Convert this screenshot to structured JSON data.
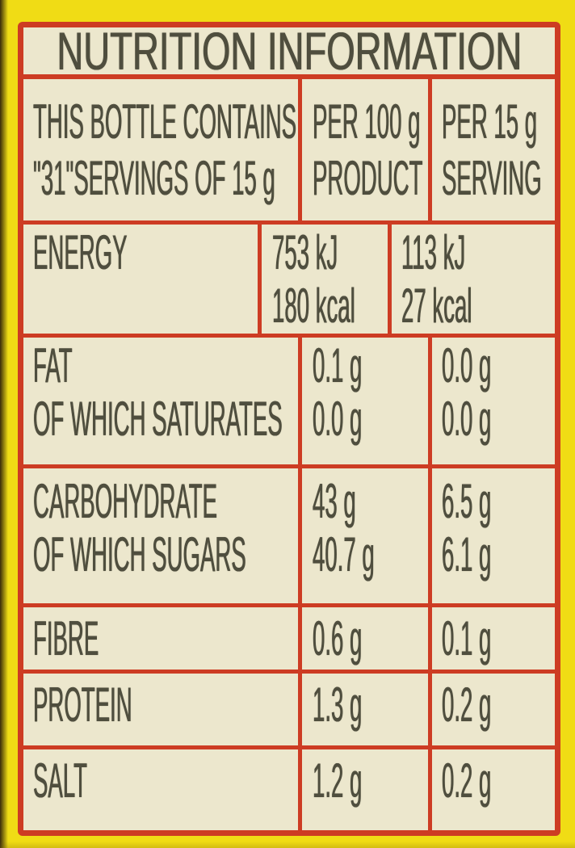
{
  "table": {
    "title": "NUTRITION INFORMATION",
    "header": {
      "description_line1": "THIS BOTTLE CONTAINS",
      "description_line2": "\"31\"SERVINGS OF 15 g",
      "per100_line1": "PER 100 g",
      "per100_line2": "PRODUCT",
      "per15_line1": "PER 15 g",
      "per15_line2": "SERVING"
    },
    "rows": [
      {
        "name_lines": [
          "ENERGY",
          ""
        ],
        "per100_lines": [
          "753 kJ",
          "180 kcal"
        ],
        "per15_lines": [
          "113 kJ",
          "27 kcal"
        ]
      },
      {
        "name_lines": [
          "FAT",
          "OF WHICH SATURATES"
        ],
        "per100_lines": [
          "0.1 g",
          "0.0 g"
        ],
        "per15_lines": [
          "0.0 g",
          "0.0 g"
        ]
      },
      {
        "name_lines": [
          "CARBOHYDRATE",
          "OF WHICH SUGARS"
        ],
        "per100_lines": [
          "43 g",
          "40.7 g"
        ],
        "per15_lines": [
          "6.5 g",
          "6.1 g"
        ]
      },
      {
        "name_lines": [
          "FIBRE"
        ],
        "per100_lines": [
          "0.6 g"
        ],
        "per15_lines": [
          "0.1 g"
        ]
      },
      {
        "name_lines": [
          "PROTEIN"
        ],
        "per100_lines": [
          "1.3 g"
        ],
        "per15_lines": [
          "0.2 g"
        ]
      },
      {
        "name_lines": [
          "SALT"
        ],
        "per100_lines": [
          "1.2 g"
        ],
        "per15_lines": [
          "0.2 g"
        ]
      }
    ],
    "colors": {
      "label_background": "#f0dc15",
      "grid_red": "#cd3c23",
      "cell_cream": "#ece7cd",
      "text": "#4f4e3e"
    }
  }
}
